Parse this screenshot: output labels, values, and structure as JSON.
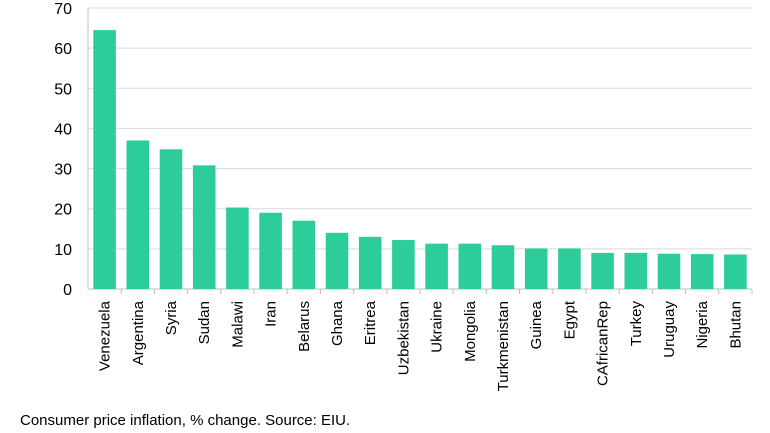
{
  "caption": "Consumer price inflation, % change. Source: EIU.",
  "colors": {
    "bar": "#2dcc9b",
    "grid": "#d9d9d9",
    "axis": "#bfbfbf"
  },
  "chart_data": {
    "type": "bar",
    "title": "",
    "xlabel": "",
    "ylabel": "",
    "ylim": [
      0,
      70
    ],
    "yticks": [
      0,
      10,
      20,
      30,
      40,
      50,
      60,
      70
    ],
    "grid": true,
    "categories": [
      "Venezuela",
      "Argentina",
      "Syria",
      "Sudan",
      "Malawi",
      "Iran",
      "Belarus",
      "Ghana",
      "Eritrea",
      "Uzbekistan",
      "Ukraine",
      "Mongolia",
      "Turkmenistan",
      "Guinea",
      "Egypt",
      "CAfricanRep",
      "Turkey",
      "Uruguay",
      "Nigeria",
      "Bhutan"
    ],
    "values": [
      64.5,
      37,
      34.8,
      30.8,
      20.3,
      19,
      17,
      14,
      13,
      12.2,
      11.3,
      11.3,
      10.9,
      10.1,
      10.1,
      9,
      9,
      8.8,
      8.7,
      8.6
    ]
  }
}
